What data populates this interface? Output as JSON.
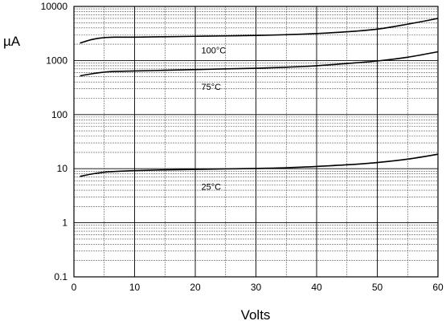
{
  "chart_data": {
    "type": "line",
    "title": "",
    "xlabel": "Volts",
    "ylabel": "µA",
    "xlim": [
      0,
      60
    ],
    "ylim": [
      0.1,
      10000
    ],
    "yscale": "log",
    "grid": true,
    "legend": "none",
    "x_ticks": [
      0,
      10,
      20,
      30,
      40,
      50,
      60
    ],
    "y_ticks": [
      0.1,
      1,
      10,
      100,
      1000,
      10000
    ],
    "y_tick_labels": [
      "0.1",
      "1",
      "10",
      "100",
      "1000",
      "10000"
    ],
    "x_tick_labels": [
      "0",
      "10",
      "20",
      "30",
      "40",
      "50",
      "60"
    ],
    "series": [
      {
        "name": "100°C",
        "x": [
          1,
          3,
          5,
          7,
          10,
          15,
          20,
          25,
          30,
          35,
          40,
          45,
          50,
          55,
          60
        ],
        "values": [
          2100,
          2450,
          2650,
          2700,
          2700,
          2750,
          2800,
          2850,
          2900,
          3000,
          3150,
          3400,
          3800,
          4700,
          6000
        ]
      },
      {
        "name": "75°C",
        "x": [
          1,
          3,
          5,
          7,
          10,
          15,
          20,
          25,
          30,
          35,
          40,
          45,
          50,
          55,
          60
        ],
        "values": [
          520,
          570,
          610,
          630,
          640,
          660,
          680,
          700,
          720,
          750,
          800,
          880,
          980,
          1150,
          1450
        ]
      },
      {
        "name": "25°C",
        "x": [
          1,
          3,
          5,
          7,
          10,
          15,
          20,
          25,
          30,
          35,
          40,
          45,
          50,
          55,
          60
        ],
        "values": [
          7.2,
          8.0,
          8.6,
          8.9,
          9.2,
          9.5,
          9.7,
          9.9,
          10.1,
          10.4,
          11.0,
          11.8,
          13.0,
          15.0,
          18.5
        ]
      }
    ],
    "series_label_positions": [
      {
        "name": "100°C",
        "x": 21,
        "y": 1550
      },
      {
        "name": "75°C",
        "x": 21,
        "y": 330
      },
      {
        "name": "25°C",
        "x": 21,
        "y": 4.7
      }
    ],
    "colors": {
      "line": "#000000",
      "grid_major": "#000000",
      "grid_minor": "#555555",
      "background": "#ffffff"
    }
  }
}
